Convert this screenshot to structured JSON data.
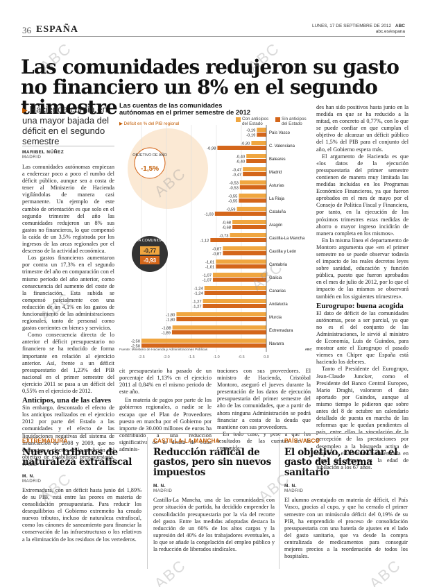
{
  "header": {
    "page_number": "36",
    "section": "ESPAÑA",
    "date": "LUNES, 17 DE SEPTIEMBRE DE 2012",
    "brand": "ABC",
    "site": "abc.es/espana"
  },
  "article": {
    "headline": "Las comunidades redujeron su gasto no financiero un 8% en el segundo trimestre",
    "subhead": "Hacienda confía en una mayor bajada del déficit en el segundo semestre",
    "author": "MARIBEL NÚÑEZ",
    "place": "MADRID",
    "col1": [
      "Las comunidades autónomas empiezan a enderezar poco a poco el rumbo del déficit público, aunque sea a costa de tener al Ministerio de Hacienda vigilándolas de manera casi permanente. Un ejemplo de este cambio de orientación es que solo en el segundo trimestre del año las comunidades redujeron un 8% sus gastos no financieros, lo que compensó la caída de un 3,5% registrada por los ingresos de las arcas regionales por el descenso de la actividad económica.",
      "Los gastos financieros aumentaron por contra un 17,3% en el segundo trimestre del año en comparación con el mismo periodo del año anterior, como consecuencia del aumento del coste de la financiación. Esta subida se compensó parcialmente con una reducción de un 4,1% en los gastos de funcionamiento de las administraciones regionales, tanto de personal como gastos corrientes en bienes y servicios.",
      "Como consecuencia directa de lo anterior el déficit presupuestario no financiero se ha reducido de forma importante en relación al ejercicio anterior. Así, frente a un déficit presupuestario del 1,23% del PIB nacional en el primer semestre del ejercicio 2011 se pasa a un déficit del 0,55% en el ejercicio de 2012."
    ],
    "col1_subhead": "Anticipos, una de las claves",
    "col1b": "Sin embargo, descontado el efecto de los anticipos realizados en el ejercicio 2012 por parte del Estado a las comunidades y el efecto de las liquidaciones negativas del sistema de financiación de 2008 y 2009, que no computan a efectos de la medición del objetivo de estabilidad presupuestaria, el défi-",
    "col2": "cit presupuestario ha pasado de un porcentaje del 1,13% en el ejercicio 2011 al 0,84% en el mismo periodo de este año.",
    "col2b": "En materia de pagos por parte de los gobiernos regionales, a nadie se le escapa que el Plan de Proveedores puesto en marcha por el Gobierno por importe de 30.000 millones de euros ha contribuido a una reducción significativa de la deuda de estas adminis-",
    "col3": "traciones con sus proveedores. El ministro de Hacienda, Cristóbal Montoro, aseguró el jueves durante la presentación de los datos de ejecución presupuestaria del primer semestre del año de las comunidades, que a partir de ahora ninguna Administración se podrá financiar a costa de la deuda que mantiene con sus proveedores.",
    "col3b": "En todo caso, y pese a que los resultados de las cuentas de la comunida-",
    "col4": [
      "des han sido positivos hasta junio en la medida en que se ha reducido a la mitad, en concreto al 0,77%, con lo que se puede confiar en que cumplan el objetivo de alcanzar un déficit público del 1,5% del PIB para el conjunto del año, el Gobierno espera más.",
      "El argumento de Hacienda es que «los datos de la ejecución presupuestaria del primer semestre contienen de manera muy limitada las medidas incluidas en los Programas Económico Financieros, ya que fueron aprobados en el mes de mayo por el Consejo de Política Fiscal y Financiera, por tanto, en la ejecución de los próximos trimestres estas medidas de ahorro o mayor ingreso incidirán de manera completa en los mismos».",
      "En la misma línea el departamento de Montoro argumenta que «en el primer semestre no se puede observar todavía el impacto de los reales decretos leyes sobre sanidad, educación y función pública, puesto que fueron aprobados en el mes de julio de 2012, por lo que el impacto de las mismos se observará también en los siguientes trimestres»."
    ],
    "col4_subhead": "Eurogrupo: buena acogida",
    "col4b": [
      "El dato de déficit de las comunidades autónomas, pese a ser parcial, ya que no es el del conjunto de las Administraciones, le sirvió al ministro de Economía, Luis de Guindos, para mostrar ante el Eurogrupo el pasado viernes en Chipre que España está haciendo los deberes.",
      "Tanto el Presidente del Eurogrupo, Jean-Claude Juncker, como el Presidente del Banco Central Europeo, Mario Draghi, valoraron el dato aportado por Guindos, aunque al mismo tiempo le pidieron que sobre antes del 8 de octubre un calendario detallado de puesta en marcha de las reformas que le quedan pendientes al país, entre ellas la vinculación de la percepción de las prestaciones por desempleo a la búsqueda activa de empleo o el adelanto de la entrada en vigor del retraso en la edad de jubilación a los 67 años."
    ]
  },
  "chart_data": {
    "type": "bar",
    "title": "Las cuentas de las comunidades autónomas en el primer semestre de 2012",
    "subtitle": "Déficit en % del PIB regional",
    "legend": [
      "Con anticipos del Estado",
      "Sin anticipos del Estado"
    ],
    "series_colors": [
      "#f0a640",
      "#d4661a"
    ],
    "objective_label": "OBJETIVO DE AÑO",
    "objective_value": "-1,5%",
    "media_label": "MEDIA COMUNIDADES",
    "media_values": [
      "-0,77",
      "-0,93"
    ],
    "categories": [
      "País Vasco",
      "C. Valenciana",
      "Baleares",
      "Madrid",
      "Asturias",
      "La Rioja",
      "Cataluña",
      "Aragón",
      "Castilla-La Mancha",
      "Castilla y León",
      "Cantabria",
      "Galicia",
      "Canarias",
      "Andalucía",
      "Murcia",
      "Extremadura",
      "Navarra"
    ],
    "series": [
      {
        "name": "Con anticipos del Estado",
        "values": [
          -0.19,
          -0.3,
          -0.4,
          -0.47,
          -0.53,
          -0.55,
          -0.59,
          -0.68,
          -0.73,
          -0.87,
          -1.01,
          -1.07,
          -1.24,
          -1.27,
          -1.8,
          -1.88,
          -2.5
        ]
      },
      {
        "name": "Sin anticipos del Estado",
        "values": [
          -0.19,
          -0.98,
          -0.4,
          -0.47,
          -0.53,
          -0.55,
          -1.03,
          -0.68,
          -1.12,
          -0.87,
          -1.01,
          -1.07,
          -1.24,
          -1.27,
          -1.8,
          -1.89,
          -2.5
        ]
      }
    ],
    "value_labels": [
      [
        "-0,19",
        "-0,19"
      ],
      [
        "-0,30",
        "-0,98"
      ],
      [
        "-0,40",
        "-0,40"
      ],
      [
        "-0,47",
        "-0,47"
      ],
      [
        "-0,53",
        "-0,53"
      ],
      [
        "-0,55",
        "-0,55"
      ],
      [
        "-0,59",
        "-1,03"
      ],
      [
        "-0,68",
        "-0,68"
      ],
      [
        "-0,73",
        "-1,12"
      ],
      [
        "-0,87",
        "-0,87"
      ],
      [
        "-1,01",
        "-1,01"
      ],
      [
        "-1,07",
        "-1,07"
      ],
      [
        "-1,24",
        "-1,24"
      ],
      [
        "-1,27",
        "-1,27"
      ],
      [
        "-1,80",
        "-1,80"
      ],
      [
        "-1,88",
        "-1,89"
      ],
      [
        "-2,50",
        "-2,50"
      ]
    ],
    "xticks": [
      "-2,5",
      "-2,0",
      "-1,5",
      "-1,0",
      "-0,5",
      "0,0"
    ],
    "xlim": [
      -2.5,
      0
    ],
    "source": "Fuente: Ministerio de Hacienda y Administraciones Públicas",
    "brand": "ABC"
  },
  "bottom": [
    {
      "label": "EXTREMADURA",
      "title": "Nuevos tributos de naturaleza extrafiscal",
      "author": "M. N.",
      "place": "MADRID",
      "body": "Extremadura, con un déficit hasta junio del 1,89% de su PIB, está entre las peores en materia de consolidación presupuestaria. Para reducir los desequilibrios el Gobierno extremeño ha creado nuevos tributos, incluso de naturaleza extrafiscal, como los cánones de saneamiento para financiar la conservación de las infraestructuras o los relativos a la eliminación de los residuos de los vertederos."
    },
    {
      "label": "CASTILLA-LA MANCHA",
      "title": "Reducción radical de gastos, pero sin nuevos impuestos",
      "author": "M. N.",
      "place": "MADRID",
      "body": "Castilla-La Mancha, una de las comunidades con peor situación de partida, ha decidido emprender la consolidación presupuestaria por la vía del recorte del gasto. Entre las medidas adoptadas destaca la reducción de un 60% de los altos cargos y la supresión del 40% de los trabajadores eventuales, a lo que se añade la congelación del empleo público y la reducción de liberados sindicales."
    },
    {
      "label": "PAÍS VASCO",
      "title": "El objetivo, recortar el gasto del sistema sanitario",
      "author": "M. N.",
      "place": "MADRID",
      "body": "El alumno aventajado en materia de déficit, el País Vasco, gracias al cupo, y que ha cerrado el primer semestre con un minúsculo déficit del 0,19% de su PIB, ha emprendido el proceso de consolidación presupuestaria con una batería de ajustes en el lado del gasto sanitario, que va desde la compra centralizada de medicamentos para conseguir mejores precios a la reordenación de todos los hospitales."
    }
  ],
  "watermark": "ABC"
}
